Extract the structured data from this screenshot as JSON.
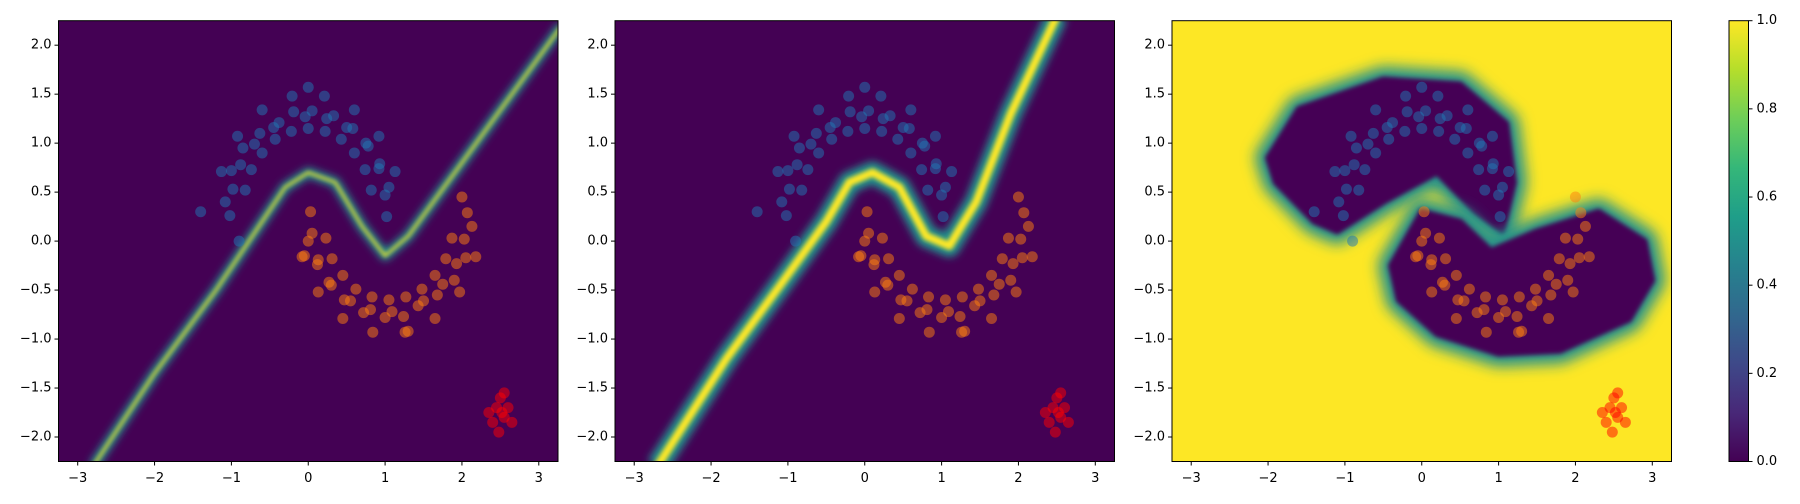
{
  "chart_data": [
    {
      "type": "scatter",
      "xlim": [
        -3.25,
        3.25
      ],
      "ylim": [
        -2.25,
        2.25
      ],
      "xticks": [
        {
          "value": -3,
          "label": "−3"
        },
        {
          "value": -2,
          "label": "−2"
        },
        {
          "value": -1,
          "label": "−1"
        },
        0,
        1,
        2,
        3
      ],
      "yticks": [
        {
          "value": -2,
          "label": "−2.0"
        },
        {
          "value": -1.5,
          "label": "−1.5"
        },
        {
          "value": -1,
          "label": "−1.0"
        },
        {
          "value": -0.5,
          "label": "−0.5"
        },
        {
          "value": 0,
          "label": "0.0"
        },
        0.5,
        {
          "value": 1,
          "label": "1.0"
        },
        1.5,
        {
          "value": 2,
          "label": "2.0"
        }
      ],
      "field": {
        "background": "#440154",
        "regions": [
          {
            "color": "#fde725",
            "glow": "#21918c",
            "closed": false,
            "x": [
              -2.8,
              -2,
              -1.2,
              -0.6,
              -0.3,
              0,
              0.35,
              0.7,
              1.0,
              1.3,
              2,
              3.3
            ],
            "y": [
              -2.3,
              -1.35,
              -0.5,
              0.2,
              0.55,
              0.7,
              0.6,
              0.15,
              -0.15,
              0.05,
              0.8,
              2.2
            ]
          }
        ]
      },
      "series": [
        {
          "color": "#1f77b4",
          "alpha": 0.5,
          "x": [
            1.02,
            1.0,
            1.05,
            0.92,
            0.93,
            0.78,
            0.75,
            0.58,
            0.5,
            0.33,
            0.24,
            0.05,
            -0.04,
            -0.19,
            -0.38,
            -0.45,
            -0.63,
            -0.7,
            -0.85,
            -0.88,
            -1.0,
            -0.98,
            -1.08,
            -1.02,
            -1.4,
            -0.9,
            0.0,
            0.82,
            0.74,
            0.6,
            0.43,
            0.22,
            0.0,
            -0.22,
            -0.43,
            -0.6,
            -0.74,
            -0.82,
            1.13,
            0.92,
            0.6,
            0.21,
            -0.21,
            -0.6,
            -0.92,
            -1.13
          ],
          "y": [
            0.25,
            0.47,
            0.55,
            0.74,
            0.79,
            0.97,
            1.0,
            1.15,
            1.16,
            1.28,
            1.25,
            1.33,
            1.27,
            1.32,
            1.21,
            1.16,
            1.1,
            0.99,
            0.95,
            0.78,
            0.72,
            0.53,
            0.4,
            0.26,
            0.3,
            0.0,
            1.57,
            0.52,
            0.73,
            0.9,
            1.04,
            1.12,
            1.15,
            1.12,
            1.04,
            0.9,
            0.73,
            0.52,
            0.71,
            1.07,
            1.34,
            1.48,
            1.48,
            1.34,
            1.07,
            0.71
          ]
        },
        {
          "color": "#ff7f0e",
          "alpha": 0.5,
          "x": [
            0.03,
            0.05,
            0.0,
            0.13,
            0.12,
            0.27,
            0.3,
            0.47,
            0.55,
            0.72,
            0.81,
            1.0,
            1.09,
            1.24,
            1.43,
            1.5,
            1.68,
            1.75,
            1.9,
            1.93,
            2.05,
            2.03,
            2.13,
            2.07,
            1.3,
            2.0,
            -0.05,
            0.23,
            0.31,
            0.45,
            0.62,
            0.83,
            1.05,
            1.27,
            1.48,
            1.65,
            1.79,
            1.87,
            -0.08,
            0.13,
            0.45,
            0.84,
            1.26,
            1.65,
            1.97,
            2.18
          ],
          "y": [
            0.3,
            0.08,
            0.0,
            -0.19,
            -0.24,
            -0.42,
            -0.45,
            -0.6,
            -0.61,
            -0.73,
            -0.7,
            -0.78,
            -0.72,
            -0.77,
            -0.66,
            -0.61,
            -0.55,
            -0.44,
            -0.4,
            -0.23,
            -0.17,
            0.02,
            0.15,
            0.29,
            -0.92,
            0.45,
            -0.15,
            0.03,
            -0.18,
            -0.35,
            -0.49,
            -0.57,
            -0.6,
            -0.57,
            -0.49,
            -0.35,
            -0.18,
            0.03,
            -0.16,
            -0.52,
            -0.79,
            -0.93,
            -0.93,
            -0.79,
            -0.52,
            -0.16
          ]
        },
        {
          "color": "#ff0000",
          "alpha": 0.5,
          "x": [
            2.45,
            2.55,
            2.5,
            2.4,
            2.6,
            2.48,
            2.55,
            2.35,
            2.65,
            2.52
          ],
          "y": [
            -1.7,
            -1.8,
            -1.6,
            -1.85,
            -1.7,
            -1.95,
            -1.55,
            -1.75,
            -1.85,
            -1.75
          ]
        }
      ]
    },
    {
      "type": "scatter",
      "xlim": [
        -3.25,
        3.25
      ],
      "ylim": [
        -2.25,
        2.25
      ],
      "xticks": [
        {
          "value": -3,
          "label": "−3"
        },
        {
          "value": -2,
          "label": "−2"
        },
        {
          "value": -1,
          "label": "−1"
        },
        0,
        1,
        2,
        3
      ],
      "yticks": [
        {
          "value": -2,
          "label": "−2.0"
        },
        {
          "value": -1.5,
          "label": "−1.5"
        },
        {
          "value": -1,
          "label": "−1.0"
        },
        {
          "value": -0.5,
          "label": "−0.5"
        },
        {
          "value": 0,
          "label": "0.0"
        },
        0.5,
        {
          "value": 1,
          "label": "1.0"
        },
        1.5,
        {
          "value": 2,
          "label": "2.0"
        }
      ],
      "field": {
        "background": "#440154",
        "regions": [
          {
            "color": "#fde725",
            "glow": "#21918c",
            "closed": false,
            "x": [
              -2.7,
              -1.8,
              -1.1,
              -0.5,
              -0.2,
              0.1,
              0.45,
              0.8,
              1.1,
              1.45,
              1.9,
              2.5
            ],
            "y": [
              -2.3,
              -1.2,
              -0.45,
              0.2,
              0.6,
              0.7,
              0.55,
              0.05,
              -0.05,
              0.4,
              1.3,
              2.3
            ]
          }
        ]
      },
      "series": [
        {
          "color": "#1f77b4",
          "alpha": 0.5,
          "x": [
            1.02,
            1.0,
            1.05,
            0.92,
            0.93,
            0.78,
            0.75,
            0.58,
            0.5,
            0.33,
            0.24,
            0.05,
            -0.04,
            -0.19,
            -0.38,
            -0.45,
            -0.63,
            -0.7,
            -0.85,
            -0.88,
            -1.0,
            -0.98,
            -1.08,
            -1.02,
            -1.4,
            -0.9,
            0.0,
            0.82,
            0.74,
            0.6,
            0.43,
            0.22,
            0.0,
            -0.22,
            -0.43,
            -0.6,
            -0.74,
            -0.82,
            1.13,
            0.92,
            0.6,
            0.21,
            -0.21,
            -0.6,
            -0.92,
            -1.13
          ],
          "y": [
            0.25,
            0.47,
            0.55,
            0.74,
            0.79,
            0.97,
            1.0,
            1.15,
            1.16,
            1.28,
            1.25,
            1.33,
            1.27,
            1.32,
            1.21,
            1.16,
            1.1,
            0.99,
            0.95,
            0.78,
            0.72,
            0.53,
            0.4,
            0.26,
            0.3,
            0.0,
            1.57,
            0.52,
            0.73,
            0.9,
            1.04,
            1.12,
            1.15,
            1.12,
            1.04,
            0.9,
            0.73,
            0.52,
            0.71,
            1.07,
            1.34,
            1.48,
            1.48,
            1.34,
            1.07,
            0.71
          ]
        },
        {
          "color": "#ff7f0e",
          "alpha": 0.5,
          "x": [
            0.03,
            0.05,
            0.0,
            0.13,
            0.12,
            0.27,
            0.3,
            0.47,
            0.55,
            0.72,
            0.81,
            1.0,
            1.09,
            1.24,
            1.43,
            1.5,
            1.68,
            1.75,
            1.9,
            1.93,
            2.05,
            2.03,
            2.13,
            2.07,
            1.3,
            2.0,
            -0.05,
            0.23,
            0.31,
            0.45,
            0.62,
            0.83,
            1.05,
            1.27,
            1.48,
            1.65,
            1.79,
            1.87,
            -0.08,
            0.13,
            0.45,
            0.84,
            1.26,
            1.65,
            1.97,
            2.18
          ],
          "y": [
            0.3,
            0.08,
            0.0,
            -0.19,
            -0.24,
            -0.42,
            -0.45,
            -0.6,
            -0.61,
            -0.73,
            -0.7,
            -0.78,
            -0.72,
            -0.77,
            -0.66,
            -0.61,
            -0.55,
            -0.44,
            -0.4,
            -0.23,
            -0.17,
            0.02,
            0.15,
            0.29,
            -0.92,
            0.45,
            -0.15,
            0.03,
            -0.18,
            -0.35,
            -0.49,
            -0.57,
            -0.6,
            -0.57,
            -0.49,
            -0.35,
            -0.18,
            0.03,
            -0.16,
            -0.52,
            -0.79,
            -0.93,
            -0.93,
            -0.79,
            -0.52,
            -0.16
          ]
        },
        {
          "color": "#ff0000",
          "alpha": 0.5,
          "x": [
            2.45,
            2.55,
            2.5,
            2.4,
            2.6,
            2.48,
            2.55,
            2.35,
            2.65,
            2.52
          ],
          "y": [
            -1.7,
            -1.8,
            -1.6,
            -1.85,
            -1.7,
            -1.95,
            -1.55,
            -1.75,
            -1.85,
            -1.75
          ]
        }
      ]
    },
    {
      "type": "scatter",
      "xlim": [
        -3.25,
        3.25
      ],
      "ylim": [
        -2.25,
        2.25
      ],
      "xticks": [
        {
          "value": -3,
          "label": "−3"
        },
        {
          "value": -2,
          "label": "−2"
        },
        {
          "value": -1,
          "label": "−1"
        },
        0,
        1,
        2,
        3
      ],
      "yticks": [
        {
          "value": -2,
          "label": "−2.0"
        },
        {
          "value": -1.5,
          "label": "−1.5"
        },
        {
          "value": -1,
          "label": "−1.0"
        },
        {
          "value": -0.5,
          "label": "−0.5"
        },
        {
          "value": 0,
          "label": "0.0"
        },
        0.5,
        {
          "value": 1,
          "label": "1.0"
        },
        1.5,
        {
          "value": 2,
          "label": "2.0"
        }
      ],
      "field": {
        "background": "#fde725",
        "regions": [
          {
            "color": "#440154",
            "glow": "#21918c",
            "closed": true,
            "x": [
              -2.0,
              -1.6,
              -0.5,
              0.5,
              1.1,
              1.2,
              1.05,
              0.7,
              0.2,
              -0.5,
              -1.1,
              -1.4,
              -1.9
            ],
            "y": [
              0.85,
              1.35,
              1.65,
              1.6,
              1.2,
              0.6,
              0.1,
              0.3,
              0.7,
              0.4,
              0.1,
              0.2,
              0.6
            ]
          },
          {
            "color": "#440154",
            "glow": "#21918c",
            "closed": true,
            "x": [
              -0.4,
              0.0,
              0.5,
              0.9,
              1.5,
              2.3,
              2.9,
              3.0,
              2.7,
              1.8,
              1.0,
              0.2,
              -0.3
            ],
            "y": [
              -0.25,
              0.3,
              0.2,
              -0.1,
              0.1,
              0.3,
              0.0,
              -0.4,
              -0.8,
              -1.12,
              -1.15,
              -0.95,
              -0.6
            ]
          }
        ]
      },
      "series": [
        {
          "color": "#1f77b4",
          "alpha": 0.5,
          "x": [
            1.02,
            1.0,
            1.05,
            0.92,
            0.93,
            0.78,
            0.75,
            0.58,
            0.5,
            0.33,
            0.24,
            0.05,
            -0.04,
            -0.19,
            -0.38,
            -0.45,
            -0.63,
            -0.7,
            -0.85,
            -0.88,
            -1.0,
            -0.98,
            -1.08,
            -1.02,
            -1.4,
            -0.9,
            0.0,
            0.82,
            0.74,
            0.6,
            0.43,
            0.22,
            0.0,
            -0.22,
            -0.43,
            -0.6,
            -0.74,
            -0.82,
            1.13,
            0.92,
            0.6,
            0.21,
            -0.21,
            -0.6,
            -0.92,
            -1.13
          ],
          "y": [
            0.25,
            0.47,
            0.55,
            0.74,
            0.79,
            0.97,
            1.0,
            1.15,
            1.16,
            1.28,
            1.25,
            1.33,
            1.27,
            1.32,
            1.21,
            1.16,
            1.1,
            0.99,
            0.95,
            0.78,
            0.72,
            0.53,
            0.4,
            0.26,
            0.3,
            0.0,
            1.57,
            0.52,
            0.73,
            0.9,
            1.04,
            1.12,
            1.15,
            1.12,
            1.04,
            0.9,
            0.73,
            0.52,
            0.71,
            1.07,
            1.34,
            1.48,
            1.48,
            1.34,
            1.07,
            0.71
          ]
        },
        {
          "color": "#ff7f0e",
          "alpha": 0.5,
          "x": [
            0.03,
            0.05,
            0.0,
            0.13,
            0.12,
            0.27,
            0.3,
            0.47,
            0.55,
            0.72,
            0.81,
            1.0,
            1.09,
            1.24,
            1.43,
            1.5,
            1.68,
            1.75,
            1.9,
            1.93,
            2.05,
            2.03,
            2.13,
            2.07,
            1.3,
            2.0,
            -0.05,
            0.23,
            0.31,
            0.45,
            0.62,
            0.83,
            1.05,
            1.27,
            1.48,
            1.65,
            1.79,
            1.87,
            -0.08,
            0.13,
            0.45,
            0.84,
            1.26,
            1.65,
            1.97,
            2.18
          ],
          "y": [
            0.3,
            0.08,
            0.0,
            -0.19,
            -0.24,
            -0.42,
            -0.45,
            -0.6,
            -0.61,
            -0.73,
            -0.7,
            -0.78,
            -0.72,
            -0.77,
            -0.66,
            -0.61,
            -0.55,
            -0.44,
            -0.4,
            -0.23,
            -0.17,
            0.02,
            0.15,
            0.29,
            -0.92,
            0.45,
            -0.15,
            0.03,
            -0.18,
            -0.35,
            -0.49,
            -0.57,
            -0.6,
            -0.57,
            -0.49,
            -0.35,
            -0.18,
            0.03,
            -0.16,
            -0.52,
            -0.79,
            -0.93,
            -0.93,
            -0.79,
            -0.52,
            -0.16
          ]
        },
        {
          "color": "#ff0000",
          "alpha": 0.5,
          "x": [
            2.45,
            2.55,
            2.5,
            2.4,
            2.6,
            2.48,
            2.55,
            2.35,
            2.65,
            2.52
          ],
          "y": [
            -1.7,
            -1.8,
            -1.6,
            -1.85,
            -1.7,
            -1.95,
            -1.55,
            -1.75,
            -1.85,
            -1.75
          ]
        }
      ]
    }
  ],
  "colorbar": {
    "colors": [
      "#440154",
      "#482878",
      "#3e4989",
      "#31688e",
      "#26828e",
      "#1f9e89",
      "#35b779",
      "#6ece58",
      "#b5de2b",
      "#fde725"
    ],
    "lim": [
      0,
      1
    ],
    "ticks": [
      {
        "value": 0,
        "label": "0.0"
      },
      0.2,
      0.4,
      0.6,
      0.8,
      {
        "value": 1,
        "label": "1.0"
      }
    ]
  }
}
